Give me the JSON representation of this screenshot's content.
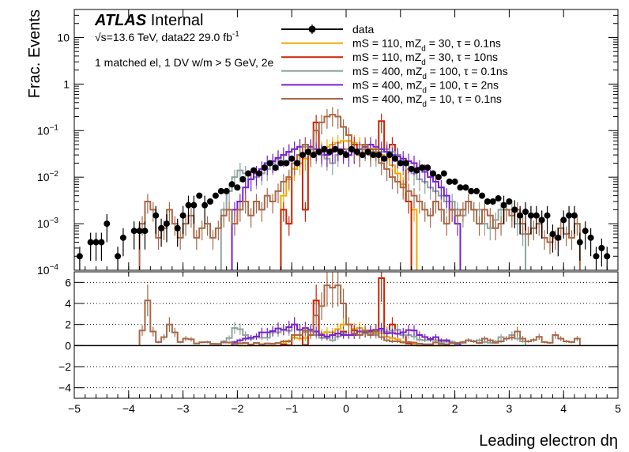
{
  "chart_data": {
    "type": "histogram",
    "upper": {
      "ylabel": "Frac. Events",
      "yscale": "log",
      "ylim": [
        0.0001,
        40
      ],
      "y_tick_labels": [
        {
          "v": 10,
          "t": "10"
        },
        {
          "v": 1,
          "t": "1"
        },
        {
          "v": 0.1,
          "t": "10",
          "sup": "−1"
        },
        {
          "v": 0.01,
          "t": "10",
          "sup": "−2"
        },
        {
          "v": 0.001,
          "t": "10",
          "sup": "−3"
        },
        {
          "v": 0.0001,
          "t": "10",
          "sup": "−4"
        }
      ]
    },
    "lower": {
      "ylim": [
        -5,
        7
      ],
      "y_ticks": [
        -4,
        -2,
        0,
        2,
        4,
        6
      ],
      "dotted_lines": [
        -4,
        -2,
        2,
        4,
        6
      ]
    },
    "x": {
      "label": "Leading electron dη",
      "range": [
        -5,
        5
      ],
      "ticks": [
        -5,
        -4,
        -3,
        -2,
        -1,
        0,
        1,
        2,
        3,
        4,
        5
      ]
    },
    "atlas": {
      "bold": "ATLAS",
      "rest": " Internal",
      "energy_line_prefix": "√s=13.6 TeV, data22 29.0 fb",
      "energy_line_sup": "-1",
      "selection": "1 matched el, 1 DV w/m > 5 GeV, 2e"
    },
    "legend_position": "top-right",
    "series": [
      {
        "name": "data",
        "color": "#000000",
        "style": "points",
        "legend": {
          "pre": "data"
        },
        "x": [
          -4.9,
          -4.7,
          -4.6,
          -4.5,
          -4.4,
          -4.2,
          -4.1,
          -3.9,
          -3.8,
          -3.7,
          -3.5,
          -3.4,
          -3.3,
          -3.1,
          -3.0,
          -2.9,
          -2.8,
          -2.7,
          -2.6,
          -2.5,
          -2.4,
          -2.3,
          -2.2,
          -2.1,
          -2.0,
          -1.9,
          -1.8,
          -1.7,
          -1.6,
          -1.5,
          -1.4,
          -1.3,
          -1.2,
          -1.1,
          -1.0,
          -0.9,
          -0.8,
          -0.7,
          -0.6,
          -0.5,
          -0.4,
          -0.3,
          -0.2,
          -0.1,
          0.0,
          0.1,
          0.2,
          0.3,
          0.4,
          0.5,
          0.6,
          0.7,
          0.8,
          0.9,
          1.0,
          1.1,
          1.2,
          1.3,
          1.4,
          1.5,
          1.6,
          1.7,
          1.8,
          1.9,
          2.0,
          2.1,
          2.2,
          2.3,
          2.4,
          2.5,
          2.6,
          2.7,
          2.8,
          2.9,
          3.0,
          3.1,
          3.2,
          3.3,
          3.4,
          3.5,
          3.6,
          3.7,
          3.8,
          3.9,
          4.0,
          4.1,
          4.2,
          4.3,
          4.4,
          4.5,
          4.6,
          4.7,
          4.8
        ],
        "values": [
          0.0002,
          0.0004,
          0.0004,
          0.0004,
          0.001,
          0.0002,
          0.0005,
          0.0007,
          0.0007,
          0.0007,
          0.0015,
          0.0008,
          0.001,
          0.0008,
          0.0015,
          0.0025,
          0.0025,
          0.004,
          0.0025,
          0.003,
          0.004,
          0.005,
          0.005,
          0.007,
          0.006,
          0.009,
          0.012,
          0.014,
          0.012,
          0.016,
          0.02,
          0.016,
          0.02,
          0.02,
          0.025,
          0.02,
          0.03,
          0.035,
          0.03,
          0.035,
          0.04,
          0.035,
          0.04,
          0.035,
          0.03,
          0.04,
          0.035,
          0.03,
          0.035,
          0.03,
          0.03,
          0.025,
          0.03,
          0.025,
          0.02,
          0.02,
          0.015,
          0.014,
          0.016,
          0.016,
          0.012,
          0.01,
          0.012,
          0.008,
          0.008,
          0.006,
          0.006,
          0.005,
          0.005,
          0.004,
          0.003,
          0.003,
          0.0035,
          0.0025,
          0.003,
          0.002,
          0.0015,
          0.0018,
          0.0015,
          0.0015,
          0.0012,
          0.0015,
          0.0006,
          0.0005,
          0.0012,
          0.0015,
          0.0015,
          0.0004,
          0.0007,
          0.0005,
          0.0002,
          0.0003,
          0.0002
        ]
      },
      {
        "name": "mS = 110, mZd = 30, τ = 0.1ns",
        "color": "#f0a800",
        "style": "step",
        "legend": {
          "pre": "mS = 110, mZ",
          "sub": "d",
          "post": " = 30, τ = 0.1ns"
        },
        "edges_from": -2.0,
        "edges_to": 2.0,
        "bin": 0.1,
        "values": [
          0,
          0,
          0,
          0,
          0,
          0,
          0,
          0,
          0.004,
          0.009,
          0.015,
          0.02,
          0.025,
          0.03,
          0.035,
          0.04,
          0.045,
          0.05,
          0.055,
          0.06,
          0.06,
          0.055,
          0.05,
          0.045,
          0.04,
          0.035,
          0.03,
          0.025,
          0.018,
          0.012,
          0.007,
          0.003,
          0.002,
          0,
          0,
          0,
          0,
          0,
          0,
          0
        ]
      },
      {
        "name": "mS = 110, mZd = 30, τ = 10ns",
        "color": "#cc2200",
        "style": "step",
        "legend": {
          "pre": "mS = 110, mZ",
          "sub": "d",
          "post": " = 30, τ = 10ns"
        },
        "edges_from": -1.2,
        "edges_to": 1.2,
        "bin": 0.1,
        "values": [
          0.002,
          0.001,
          0.02,
          0.03,
          0.002,
          0.04,
          0.15,
          0.03,
          0.03,
          0.04,
          0.04,
          0.04,
          0.04,
          0.05,
          0.03,
          0.04,
          0.04,
          0.04,
          0.16,
          0.04,
          0.05,
          0.03,
          0.02,
          0.003
        ]
      },
      {
        "name": "mS = 400, mZd = 100, τ = 0.1ns",
        "color": "#8fa39e",
        "style": "step",
        "legend": {
          "pre": "mS = 400, mZ",
          "sub": "d",
          "post": " = 100, τ = 0.1ns"
        },
        "edges_from": -2.3,
        "edges_to": 3.3,
        "bin": 0.1,
        "values": [
          0.002,
          0.005,
          0.01,
          0.014,
          0.012,
          0.009,
          0.01,
          0.012,
          0.015,
          0.02,
          0.025,
          0.03,
          0.035,
          0.04,
          0.045,
          0.045,
          0.04,
          0.035,
          0.03,
          0.025,
          0.02,
          0.03,
          0.035,
          0.04,
          0.035,
          0.03,
          0.04,
          0.035,
          0.03,
          0.035,
          0.04,
          0.035,
          0.03,
          0.02,
          0.015,
          0.012,
          0.009,
          0.008,
          0.006,
          0.005,
          0.004,
          0.003,
          0.003,
          0.002,
          0.0015,
          0.003,
          0.002,
          0.002,
          0.001,
          0.0008,
          0.0012,
          0.002,
          0.002,
          0.002,
          0.001,
          0.0006
        ]
      },
      {
        "name": "mS = 400, mZd = 100, τ = 2ns",
        "color": "#7722cc",
        "style": "step",
        "legend": {
          "pre": "mS = 400, mZ",
          "sub": "d",
          "post": " = 100, τ = 2ns"
        },
        "edges_from": -2.1,
        "edges_to": 2.1,
        "bin": 0.1,
        "values": [
          0.002,
          0.003,
          0.006,
          0.009,
          0.012,
          0.015,
          0.02,
          0.022,
          0.026,
          0.03,
          0.035,
          0.04,
          0.045,
          0.05,
          0.045,
          0.04,
          0.035,
          0.03,
          0.035,
          0.04,
          0.035,
          0.03,
          0.035,
          0.04,
          0.045,
          0.05,
          0.045,
          0.04,
          0.035,
          0.03,
          0.028,
          0.025,
          0.022,
          0.02,
          0.016,
          0.013,
          0.01,
          0.008,
          0.006,
          0.004,
          0.002,
          0.001
        ]
      },
      {
        "name": "mS = 400, mZd = 10, τ = 0.1ns",
        "color": "#a86848",
        "style": "step",
        "legend": {
          "pre": "mS = 400, mZ",
          "sub": "d",
          "post": " = 10, τ = 0.1ns"
        },
        "edges_from": -3.8,
        "edges_to": 4.3,
        "bin": 0.1,
        "values": [
          0.001,
          0.003,
          0.002,
          0.0005,
          0.0008,
          0.002,
          0.001,
          0.0005,
          0.001,
          0.0015,
          0.0005,
          0.0008,
          0.001,
          0.0005,
          0.0008,
          0.0015,
          0.002,
          0.001,
          0.002,
          0.003,
          0.0015,
          0.003,
          0.002,
          0.004,
          0.003,
          0.005,
          0.008,
          0.01,
          0.02,
          0.03,
          0.05,
          0.03,
          0.1,
          0.15,
          0.2,
          0.22,
          0.2,
          0.12,
          0.08,
          0.04,
          0.03,
          0.05,
          0.03,
          0.04,
          0.02,
          0.015,
          0.01,
          0.008,
          0.006,
          0.005,
          0.004,
          0.003,
          0.002,
          0.0015,
          0.003,
          0.002,
          0.001,
          0.002,
          0.0015,
          0.002,
          0.003,
          0.002,
          0.001,
          0.002,
          0.0015,
          0.0008,
          0.001,
          0.002,
          0.0015,
          0.002,
          0.001,
          0.0006,
          0.0008,
          0.001,
          0.0005,
          0.0004,
          0.0005,
          0.0008,
          0.0006,
          0.0005,
          0.001
        ]
      }
    ]
  }
}
